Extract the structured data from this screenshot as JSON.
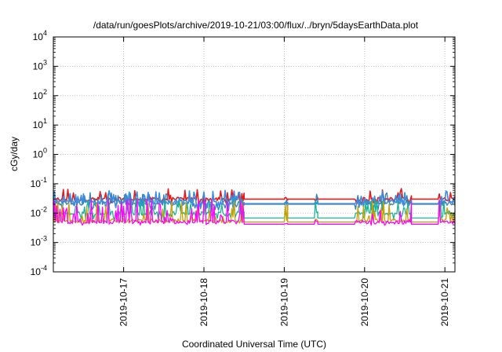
{
  "chart_data": {
    "type": "line",
    "title": "/data/run/goesPlots/archive/2019-10-21/03:00/flux/../bryn/5daysEarthData.plot",
    "xlabel": "Coordinated Universal Time (UTC)",
    "ylabel": "cGy/day",
    "yscale": "log",
    "ylim": [
      0.0001,
      10000
    ],
    "xlim": [
      "2019-10-16T03:00",
      "2019-10-21T03:00"
    ],
    "grid": true,
    "legend": "none",
    "y_ticks": [
      {
        "value": 0.0001,
        "base": "10",
        "exp": "-4"
      },
      {
        "value": 0.001,
        "base": "10",
        "exp": "-3"
      },
      {
        "value": 0.01,
        "base": "10",
        "exp": "-2"
      },
      {
        "value": 0.1,
        "base": "10",
        "exp": "-1"
      },
      {
        "value": 1,
        "base": "10",
        "exp": "0"
      },
      {
        "value": 10,
        "base": "10",
        "exp": "1"
      },
      {
        "value": 100,
        "base": "10",
        "exp": "2"
      },
      {
        "value": 1000,
        "base": "10",
        "exp": "3"
      },
      {
        "value": 10000,
        "base": "10",
        "exp": "4"
      }
    ],
    "x_ticks": [
      {
        "value": "2019-10-17T00:00",
        "label": "2019-10-17"
      },
      {
        "value": "2019-10-18T00:00",
        "label": "2019-10-18"
      },
      {
        "value": "2019-10-19T00:00",
        "label": "2019-10-19"
      },
      {
        "value": "2019-10-20T00:00",
        "label": "2019-10-20"
      },
      {
        "value": "2019-10-21T00:00",
        "label": "2019-10-21"
      }
    ],
    "data_gaps": [
      {
        "start": "2019-10-18T12:00",
        "end": "2019-10-19T00:00"
      },
      {
        "start": "2019-10-19T01:00",
        "end": "2019-10-19T09:00"
      },
      {
        "start": "2019-10-19T10:00",
        "end": "2019-10-19T21:00"
      },
      {
        "start": "2019-10-20T14:00",
        "end": "2019-10-20T22:00"
      }
    ],
    "series": [
      {
        "color": "#e41a1c",
        "baseline": 0.03,
        "flat": 0.03,
        "spike_max": 0.07,
        "dip_min": 0.02
      },
      {
        "color": "#377eb8",
        "baseline": 0.022,
        "flat": 0.02,
        "spike_max": 0.05,
        "dip_min": 0.012
      },
      {
        "color": "#3a8de0",
        "baseline": 0.025,
        "flat": 0.021,
        "spike_max": 0.06,
        "dip_min": 0.014
      },
      {
        "color": "#1ab394",
        "baseline": 0.01,
        "flat": 0.0068,
        "spike_max": 0.03,
        "dip_min": 0.006
      },
      {
        "color": "#c8a000",
        "baseline": 0.0055,
        "flat": 0.005,
        "spike_max": 0.025,
        "dip_min": 0.0045
      },
      {
        "color": "#ff00ff",
        "baseline": 0.005,
        "flat": 0.0042,
        "spike_max": 0.03,
        "dip_min": 0.0038
      }
    ]
  }
}
